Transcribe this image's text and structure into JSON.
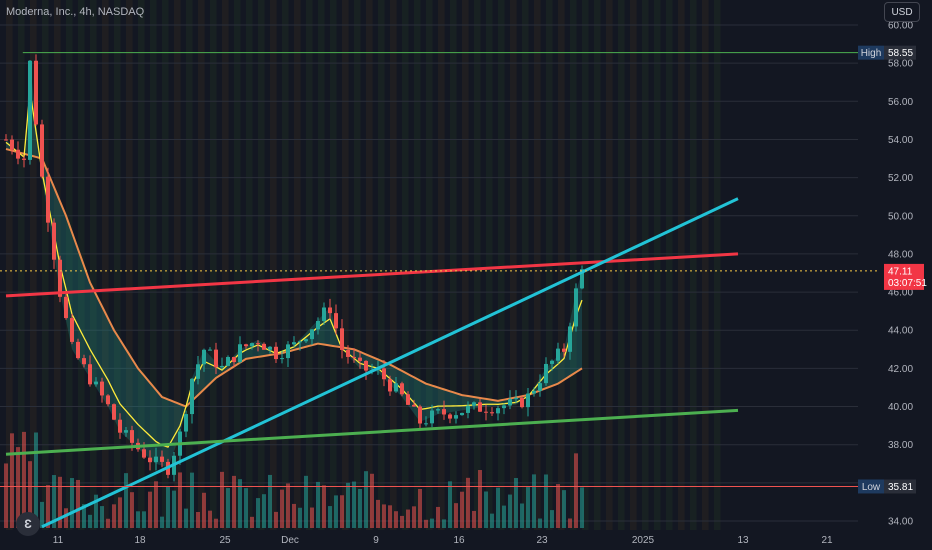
{
  "header": {
    "symbol_title": "Moderna, Inc., 4h, NASDAQ",
    "currency_button": "USD"
  },
  "logo": {
    "text": "Ɛ",
    "icon": "tradingview-logo-icon"
  },
  "chart_data": {
    "type": "candlestick",
    "symbol": "Moderna, Inc.",
    "interval": "4h",
    "exchange": "NASDAQ",
    "currency": "USD",
    "ylim": [
      34.0,
      60.0
    ],
    "y_ticks": [
      "34.00",
      "36.00",
      "38.00",
      "40.00",
      "42.00",
      "44.00",
      "46.00",
      "48.00",
      "50.00",
      "52.00",
      "54.00",
      "56.00",
      "58.00",
      "60.00"
    ],
    "x_ticks": [
      "11",
      "18",
      "25",
      "Dec",
      "9",
      "16",
      "23",
      "2025",
      "13",
      "21"
    ],
    "price_markers": {
      "high": {
        "label": "High",
        "value": "58.55"
      },
      "low": {
        "label": "Low",
        "value": "35.81"
      },
      "last": {
        "value": "47.11",
        "countdown": "03:07:51"
      }
    },
    "trendlines": [
      {
        "name": "red resistance",
        "color": "#f23645",
        "from": {
          "day": 0,
          "price": 45.8
        },
        "to": {
          "day": 61,
          "price": 48.0
        }
      },
      {
        "name": "cyan trendline",
        "color": "#22c3d6",
        "from": {
          "day": 3,
          "price": 33.7
        },
        "to": {
          "day": 61,
          "price": 50.9
        }
      },
      {
        "name": "green support",
        "color": "#4caf50",
        "from": {
          "day": 0,
          "price": 37.5
        },
        "to": {
          "day": 61,
          "price": 39.8
        }
      }
    ],
    "price_path": [
      [
        0,
        54.0
      ],
      [
        1.5,
        53.0
      ],
      [
        2.0,
        58.0
      ],
      [
        3.0,
        52.0
      ],
      [
        4.5,
        46.0
      ],
      [
        5.5,
        43.0
      ],
      [
        7.0,
        41.5
      ],
      [
        8.5,
        40.0
      ],
      [
        9.5,
        38.7
      ],
      [
        11.0,
        37.8
      ],
      [
        12.5,
        37.0
      ],
      [
        13.5,
        36.8
      ],
      [
        14.5,
        38.5
      ],
      [
        15.5,
        41.5
      ],
      [
        16.5,
        43.0
      ],
      [
        18.0,
        42.0
      ],
      [
        19.5,
        43.0
      ],
      [
        21.0,
        43.5
      ],
      [
        22.5,
        42.8
      ],
      [
        24.0,
        43.2
      ],
      [
        25.5,
        44.2
      ],
      [
        27.0,
        45.2
      ],
      [
        28.0,
        43.0
      ],
      [
        29.5,
        42.0
      ],
      [
        31.0,
        41.8
      ],
      [
        33.0,
        40.5
      ],
      [
        34.5,
        39.2
      ],
      [
        36.0,
        39.6
      ],
      [
        38.0,
        39.8
      ],
      [
        40.0,
        40.0
      ],
      [
        42.5,
        40.1
      ],
      [
        43.5,
        40.5
      ],
      [
        45.0,
        42.0
      ],
      [
        46.5,
        43.0
      ],
      [
        47.5,
        46.0
      ],
      [
        48.0,
        47.11
      ]
    ],
    "ema_ribbon": [
      [
        0,
        53.5
      ],
      [
        3.0,
        53.0
      ],
      [
        5.0,
        50.0
      ],
      [
        7.0,
        46.5
      ],
      [
        9.0,
        44.0
      ],
      [
        11.0,
        42.0
      ],
      [
        13.0,
        40.5
      ],
      [
        15.0,
        40.0
      ],
      [
        17.5,
        41.5
      ],
      [
        20.0,
        42.5
      ],
      [
        23.0,
        42.8
      ],
      [
        26.0,
        43.3
      ],
      [
        29.0,
        43.0
      ],
      [
        32.0,
        42.2
      ],
      [
        35.0,
        41.2
      ],
      [
        38.0,
        40.6
      ],
      [
        41.0,
        40.3
      ],
      [
        43.5,
        40.6
      ],
      [
        46.0,
        41.2
      ],
      [
        48.0,
        42.0
      ]
    ]
  }
}
